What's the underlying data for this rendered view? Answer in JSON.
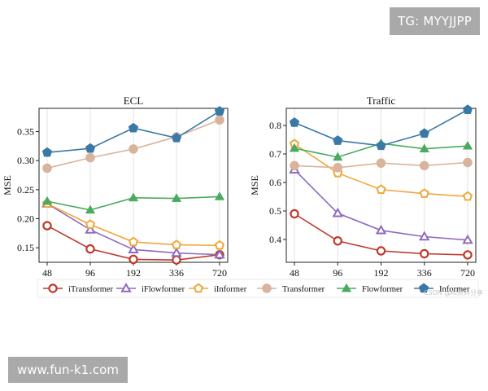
{
  "overlays": {
    "tg": "TG: MYYJJPP",
    "site": "www.fun-k1.com",
    "csdn": "CSDN @Ai资料分享"
  },
  "legend": [
    "iTransformer",
    "iFlowformer",
    "iInformer",
    "Transformer",
    "Flowformer",
    "Informer"
  ],
  "styles": {
    "iTransformer": {
      "color": "#c0392b",
      "marker": "circle"
    },
    "iFlowformer": {
      "color": "#8e6bbf",
      "marker": "triangle"
    },
    "iInformer": {
      "color": "#f0a73a",
      "marker": "pentagon"
    },
    "Transformer": {
      "color": "#d9b49c",
      "marker": "disc"
    },
    "Flowformer": {
      "color": "#4aaa5f",
      "marker": "triangle-filled"
    },
    "Informer": {
      "color": "#3a79a6",
      "marker": "pentagon-filled"
    }
  },
  "chart_data": [
    {
      "type": "line",
      "title": "ECL",
      "xlabel": "",
      "ylabel": "MSE",
      "categories": [
        "48",
        "96",
        "192",
        "336",
        "720"
      ],
      "ylim": [
        0.125,
        0.39
      ],
      "yticks": [
        0.15,
        0.2,
        0.25,
        0.3,
        0.35
      ],
      "ytick_labels": [
        "0.15",
        "0.20",
        "0.25",
        "0.30",
        "0.35"
      ],
      "grid": "vertical",
      "series": [
        {
          "name": "iTransformer",
          "values": [
            0.188,
            0.148,
            0.13,
            0.129,
            0.138
          ]
        },
        {
          "name": "iFlowformer",
          "values": [
            0.226,
            0.181,
            0.147,
            0.141,
            0.138
          ]
        },
        {
          "name": "iInformer",
          "values": [
            0.226,
            0.19,
            0.16,
            0.155,
            0.154
          ]
        },
        {
          "name": "Transformer",
          "values": [
            0.287,
            0.305,
            0.32,
            0.341,
            0.37
          ]
        },
        {
          "name": "Flowformer",
          "values": [
            0.23,
            0.215,
            0.236,
            0.235,
            0.238
          ]
        },
        {
          "name": "Informer",
          "values": [
            0.314,
            0.321,
            0.356,
            0.339,
            0.385
          ]
        }
      ]
    },
    {
      "type": "line",
      "title": "Traffic",
      "xlabel": "",
      "ylabel": "MSE",
      "categories": [
        "48",
        "96",
        "192",
        "336",
        "720"
      ],
      "ylim": [
        0.32,
        0.86
      ],
      "yticks": [
        0.4,
        0.5,
        0.6,
        0.7,
        0.8
      ],
      "ytick_labels": [
        "0.4",
        "0.5",
        "0.6",
        "0.7",
        "0.8"
      ],
      "grid": "vertical",
      "series": [
        {
          "name": "iTransformer",
          "values": [
            0.49,
            0.395,
            0.36,
            0.35,
            0.346
          ]
        },
        {
          "name": "iFlowformer",
          "values": [
            0.645,
            0.492,
            0.432,
            0.41,
            0.398
          ]
        },
        {
          "name": "iInformer",
          "values": [
            0.735,
            0.633,
            0.575,
            0.561,
            0.551
          ]
        },
        {
          "name": "Transformer",
          "values": [
            0.659,
            0.652,
            0.668,
            0.659,
            0.67
          ]
        },
        {
          "name": "Flowformer",
          "values": [
            0.72,
            0.689,
            0.737,
            0.718,
            0.728
          ]
        },
        {
          "name": "Informer",
          "values": [
            0.81,
            0.747,
            0.729,
            0.772,
            0.855
          ]
        }
      ]
    }
  ]
}
